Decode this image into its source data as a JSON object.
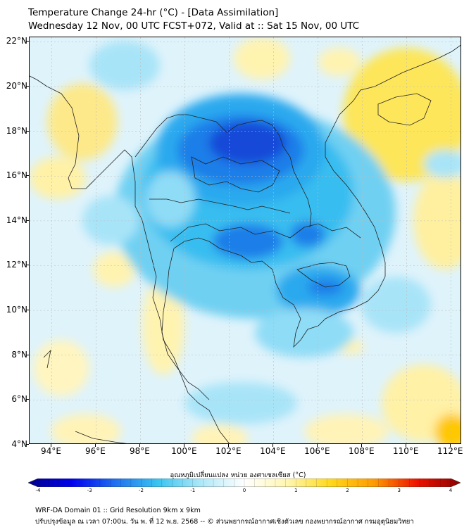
{
  "title": {
    "line1": "Temperature Change 24-hr (°C) - [Data Assimilation]",
    "line2": "Wednesday 12 Nov, 00 UTC FCST+072, Valid at :: Sat 15 Nov, 00 UTC"
  },
  "map": {
    "lat_labels": [
      "22°N",
      "20°N",
      "18°N",
      "16°N",
      "14°N",
      "12°N",
      "10°N",
      "8°N",
      "6°N",
      "4°N"
    ],
    "lat_values": [
      22,
      20,
      18,
      16,
      14,
      12,
      10,
      8,
      6,
      4
    ],
    "lon_labels": [
      "94°E",
      "96°E",
      "98°E",
      "100°E",
      "102°E",
      "104°E",
      "106°E",
      "108°E",
      "110°E",
      "112°E"
    ],
    "lon_values": [
      94,
      96,
      98,
      100,
      102,
      104,
      106,
      108,
      110,
      112
    ],
    "extent": {
      "lon_min": 93.0,
      "lon_max": 112.5,
      "lat_min": 4.0,
      "lat_max": 22.2
    }
  },
  "colorbar": {
    "label": "อุณหภูมิเปลี่ยนแปลง หน่วย องศาเซลเซียส (°C)",
    "ticks": [
      "-4",
      "-3",
      "-2",
      "-1",
      "0",
      "1",
      "2",
      "3",
      "4"
    ],
    "tick_values": [
      -4,
      -3,
      -2,
      -1,
      0,
      1,
      2,
      3,
      4
    ],
    "range": [
      -4,
      4
    ],
    "colors": [
      "#00008b",
      "#0000ee",
      "#1f6ff0",
      "#38c4f0",
      "#aee8f8",
      "#ffffff",
      "#fff6b0",
      "#ffd81a",
      "#ff9a00",
      "#ee1100",
      "#8b0000"
    ]
  },
  "footer": {
    "line1": "WRF-DA Domain 01 :: Grid Resolution 9km x 9km",
    "line2": "ปรับปรุงข้อมูล ณ เวลา 07:00น. วัน พ. ที่ 12 พ.ย. 2568 -- © ส่วนพยากรณ์อากาศเชิงตัวเลข กองพยากรณ์อากาศ กรมอุตุนิยมวิทยา"
  }
}
